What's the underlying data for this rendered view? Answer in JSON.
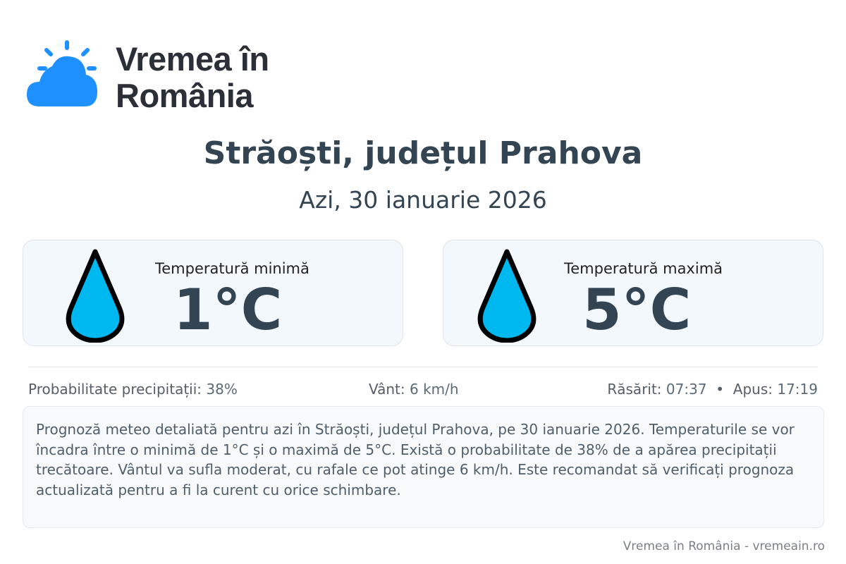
{
  "brand": {
    "name": "Vremea în România",
    "line1": "Vremea în",
    "line2": "România",
    "color": "#1e90ff"
  },
  "header": {
    "title": "Străoști, județul Prahova",
    "date": "Azi, 30 ianuarie 2026"
  },
  "cards": [
    {
      "label": "Temperatură minimă",
      "value": "1°C",
      "icon": "water-drop-icon"
    },
    {
      "label": "Temperatură maximă",
      "value": "5°C",
      "icon": "water-drop-icon"
    }
  ],
  "stats": {
    "precip_label": "Probabilitate precipitații:",
    "precip_value": "38%",
    "wind_label": "Vânt:",
    "wind_value": "6 km/h",
    "sunrise_label": "Răsărit:",
    "sunrise_value": "07:37",
    "separator": "•",
    "sunset_label": "Apus:",
    "sunset_value": "17:19"
  },
  "description": "Prognoză meteo detaliată pentru azi în Străoști, județul Prahova, pe 30 ianuarie 2026. Temperaturile se vor încadra între o minimă de 1°C și o maximă de 5°C. Există o probabilitate de 38% de a apărea precipitații trecătoare. Vântul va sufla moderat, cu rafale ce pot atinge 6 km/h. Este recomandat să verificați prognoza actualizată pentru a fi la curent cu orice schimbare.",
  "footer": "Vremea în România - vremeain.ro",
  "colors": {
    "drop_fill": "#00b8f0",
    "text_dark": "#334452"
  }
}
